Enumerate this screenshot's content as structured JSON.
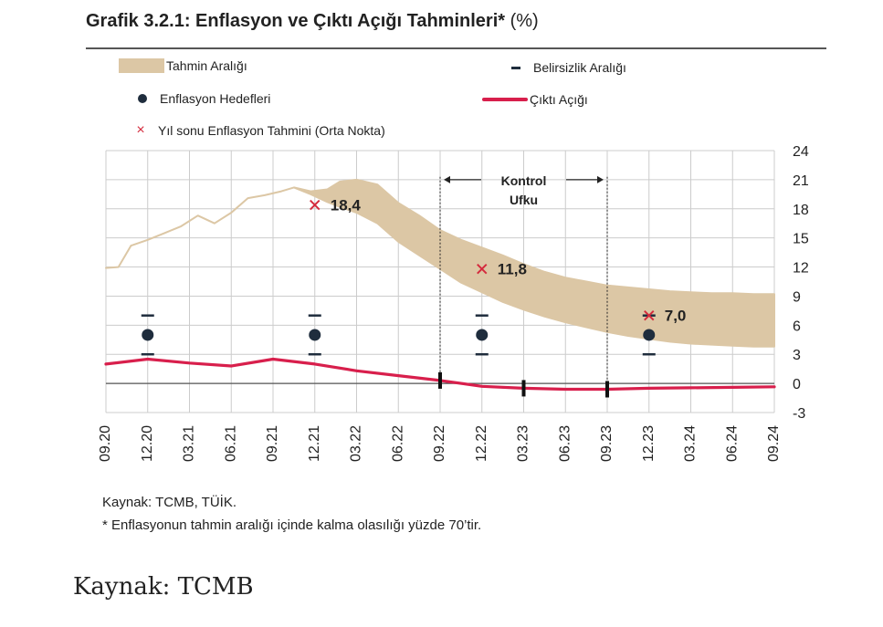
{
  "title": {
    "main": "Grafik 3.2.1: Enflasyon ve Çıktı Açığı Tahminleri*",
    "unit": "(%)"
  },
  "legend": {
    "band": "Tahmin Aralığı",
    "uncertainty": "Belirsizlik Aralığı",
    "targets": "Enflasyon Hedefleri",
    "output_gap": "Çıktı Açığı",
    "midpoint": "Yıl sonu Enflasyon Tahmini (Orta Nokta)"
  },
  "colors": {
    "band": "#dcc7a5",
    "output_gap": "#d81f4c",
    "target": "#1f2d3d",
    "midpoint": "#d42b3d",
    "grid": "#cccccc"
  },
  "chart_data": {
    "type": "line",
    "x_ticks": [
      "09.20",
      "12.20",
      "03.21",
      "06.21",
      "09.21",
      "12.21",
      "03.22",
      "06.22",
      "09.22",
      "12.22",
      "03.23",
      "06.23",
      "09.23",
      "12.23",
      "03.24",
      "06.24",
      "09.24"
    ],
    "ylim": [
      -3,
      24
    ],
    "y_ticks": [
      24,
      21,
      18,
      15,
      12,
      9,
      6,
      3,
      0,
      -3
    ],
    "band": {
      "x": [
        0,
        0.3,
        0.6,
        1,
        1.4,
        1.8,
        2.2,
        2.6,
        3,
        3.4,
        3.8,
        4.2,
        4.5,
        4.9,
        5.3,
        5.6,
        6,
        6.5,
        7,
        7.5,
        8,
        8.5,
        9,
        9.5,
        10,
        10.5,
        11,
        11.5,
        12,
        12.5,
        13,
        13.5,
        14,
        14.5,
        15,
        15.5,
        16
      ],
      "lower": [
        11.9,
        12,
        14.2,
        14.8,
        15.5,
        16.2,
        17.3,
        16.5,
        17.6,
        19.1,
        19.4,
        19.8,
        20.2,
        19.5,
        18.7,
        18.2,
        17.6,
        16.5,
        14.6,
        13.2,
        11.8,
        10.4,
        9.4,
        8.4,
        7.6,
        6.9,
        6.3,
        5.8,
        5.3,
        4.9,
        4.6,
        4.3,
        4.1,
        4,
        3.9,
        3.8,
        3.8
      ],
      "upper": [
        11.9,
        12,
        14.2,
        14.8,
        15.5,
        16.2,
        17.3,
        16.5,
        17.6,
        19.1,
        19.4,
        19.8,
        20.2,
        19.8,
        20,
        20.8,
        21,
        20.5,
        18.6,
        17.3,
        15.8,
        14.8,
        14,
        13.2,
        12.3,
        11.5,
        10.9,
        10.5,
        10.1,
        9.9,
        9.7,
        9.5,
        9.4,
        9.3,
        9.3,
        9.2,
        9.2
      ]
    },
    "output_gap": {
      "x": [
        0,
        1,
        2,
        3,
        4,
        5,
        6,
        7,
        8,
        9,
        10,
        11,
        12,
        13,
        14,
        15,
        16
      ],
      "values": [
        2.0,
        2.5,
        2.1,
        1.8,
        2.5,
        2.0,
        1.3,
        0.8,
        0.3,
        -0.3,
        -0.5,
        -0.6,
        -0.6,
        -0.5,
        -0.45,
        -0.4,
        -0.35
      ]
    },
    "output_gap_markers_x": [
      8,
      10,
      12
    ],
    "targets": {
      "x": [
        1,
        5,
        9,
        13
      ],
      "values": [
        5,
        5,
        5,
        5
      ],
      "uncertainty": [
        [
          3,
          7
        ],
        [
          3,
          7
        ],
        [
          3,
          7
        ],
        [
          3,
          7
        ]
      ]
    },
    "midpoints": [
      {
        "x": 5,
        "value": 18.4,
        "label": "18,4"
      },
      {
        "x": 9,
        "value": 11.8,
        "label": "11,8"
      },
      {
        "x": 13,
        "value": 7.0,
        "label": "7,0"
      }
    ],
    "control_horizon": {
      "from_x": 8,
      "to_x": 12,
      "label_line1": "Kontrol",
      "label_line2": "Ufku"
    },
    "grid": true
  },
  "source": "Kaynak: TCMB, TÜİK.",
  "note": "* Enflasyonun tahmin aralığı içinde kalma olasılığı yüzde 70’tir.",
  "caption": "Kaynak: TCMB"
}
